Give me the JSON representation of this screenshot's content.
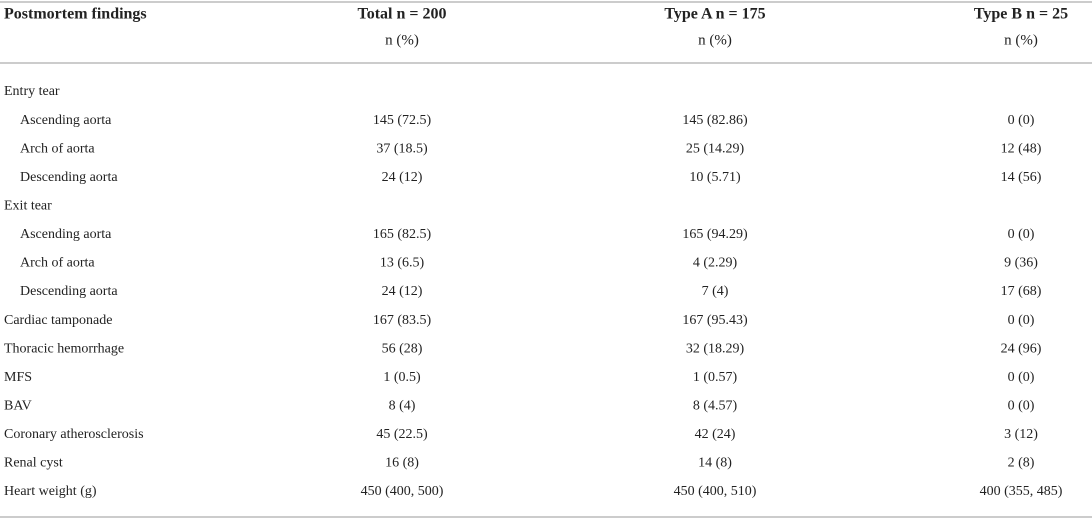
{
  "table": {
    "header": [
      {
        "title": "Postmortem findings"
      },
      {
        "title": "Total n = 200",
        "subtitle": "n (%)"
      },
      {
        "title": "Type A n = 175",
        "subtitle": "n (%)"
      },
      {
        "title": "Type B n = 25",
        "subtitle": "n (%)"
      }
    ],
    "rows": [
      {
        "label": "Entry tear",
        "children": [
          {
            "label": "Ascending aorta",
            "values": [
              "145 (72.5)",
              "145 (82.86)",
              "0 (0)"
            ]
          },
          {
            "label": "Arch of aorta",
            "values": [
              "37 (18.5)",
              "25 (14.29)",
              "12 (48)"
            ]
          },
          {
            "label": "Descending aorta",
            "values": [
              "24 (12)",
              "10 (5.71)",
              "14 (56)"
            ]
          }
        ]
      },
      {
        "label": "Exit tear",
        "children": [
          {
            "label": "Ascending aorta",
            "values": [
              "165 (82.5)",
              "165 (94.29)",
              "0 (0)"
            ]
          },
          {
            "label": "Arch of aorta",
            "values": [
              "13 (6.5)",
              "4 (2.29)",
              "9 (36)"
            ]
          },
          {
            "label": "Descending aorta",
            "values": [
              "24 (12)",
              "7 (4)",
              "17 (68)"
            ]
          }
        ]
      },
      {
        "label": "Cardiac tamponade",
        "values": [
          "167 (83.5)",
          "167 (95.43)",
          "0 (0)"
        ]
      },
      {
        "label": "Thoracic hemorrhage",
        "values": [
          "56 (28)",
          "32 (18.29)",
          "24 (96)"
        ]
      },
      {
        "label": "MFS",
        "values": [
          "1 (0.5)",
          "1 (0.57)",
          "0 (0)"
        ]
      },
      {
        "label": "BAV",
        "values": [
          "8 (4)",
          "8 (4.57)",
          "0 (0)"
        ]
      },
      {
        "label": "Coronary atherosclerosis",
        "values": [
          "45 (22.5)",
          "42 (24)",
          "3 (12)"
        ]
      },
      {
        "label": "Renal cyst",
        "values": [
          "16 (8)",
          "14 (8)",
          "2 (8)"
        ]
      },
      {
        "label": "Heart weight (g)",
        "values": [
          "450 (400, 500)",
          "450 (400, 510)",
          "400 (355, 485)"
        ]
      }
    ]
  }
}
